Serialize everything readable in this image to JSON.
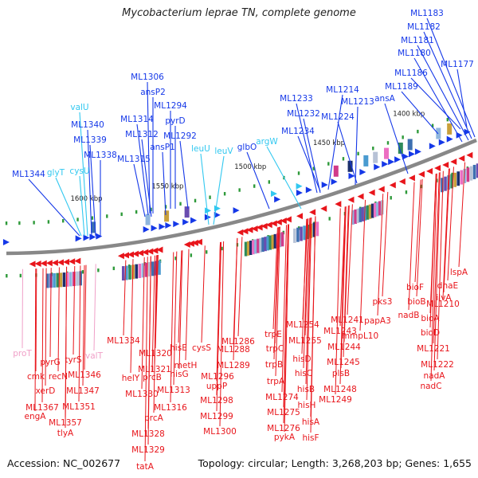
{
  "title": "Mycobacterium leprae TN, complete genome",
  "footer": {
    "accession": "Accession: NC_002677",
    "topology": "Topology: circular; Length: 3,268,203 bp; Genes: 1,655"
  },
  "colors": {
    "forward": "#1538e8",
    "reverse": "#e8151b",
    "rna": "#32c8f0",
    "pseudo": "#f0a0c8",
    "backbone": "#888888"
  },
  "ruler_ticks": [
    "1400 kbp",
    "1450 kbp",
    "1500 kbp",
    "1550 kbp",
    "1600 kbp"
  ],
  "top_labels": [
    {
      "text": "ML1183",
      "kind": "forward"
    },
    {
      "text": "ML1182",
      "kind": "forward"
    },
    {
      "text": "ML1181",
      "kind": "forward"
    },
    {
      "text": "ML1180",
      "kind": "forward"
    },
    {
      "text": "ML1177",
      "kind": "forward"
    },
    {
      "text": "ML1186",
      "kind": "forward"
    },
    {
      "text": "ML1189",
      "kind": "forward"
    },
    {
      "text": "ML1306",
      "kind": "forward"
    },
    {
      "text": "ansP2",
      "kind": "forward"
    },
    {
      "text": "ML1294",
      "kind": "forward"
    },
    {
      "text": "pyrD",
      "kind": "forward"
    },
    {
      "text": "ML1314",
      "kind": "forward"
    },
    {
      "text": "ML1312",
      "kind": "forward"
    },
    {
      "text": "ML1292",
      "kind": "forward"
    },
    {
      "text": "ansP1",
      "kind": "forward"
    },
    {
      "text": "ML1315",
      "kind": "forward"
    },
    {
      "text": "valU",
      "kind": "rna"
    },
    {
      "text": "ML1340",
      "kind": "forward"
    },
    {
      "text": "ML1339",
      "kind": "forward"
    },
    {
      "text": "cysU",
      "kind": "rna"
    },
    {
      "text": "ML1338",
      "kind": "forward"
    },
    {
      "text": "glyT",
      "kind": "rna"
    },
    {
      "text": "ML1344",
      "kind": "forward"
    },
    {
      "text": "ML1214",
      "kind": "forward"
    },
    {
      "text": "ML1213",
      "kind": "forward"
    },
    {
      "text": "ansA",
      "kind": "forward"
    },
    {
      "text": "ML1233",
      "kind": "forward"
    },
    {
      "text": "ML1232",
      "kind": "forward"
    },
    {
      "text": "ML1224",
      "kind": "forward"
    },
    {
      "text": "ML1234",
      "kind": "forward"
    },
    {
      "text": "argW",
      "kind": "rna"
    },
    {
      "text": "glbO",
      "kind": "forward"
    },
    {
      "text": "leuV",
      "kind": "rna"
    },
    {
      "text": "leuU",
      "kind": "rna"
    }
  ],
  "bottom_labels": [
    {
      "text": "lspA",
      "kind": "reverse"
    },
    {
      "text": "dnaE",
      "kind": "reverse"
    },
    {
      "text": "ilvA",
      "kind": "reverse"
    },
    {
      "text": "bioF",
      "kind": "reverse"
    },
    {
      "text": "bioB",
      "kind": "reverse"
    },
    {
      "text": "ML1210",
      "kind": "reverse"
    },
    {
      "text": "nadB",
      "kind": "reverse"
    },
    {
      "text": "bioA",
      "kind": "reverse"
    },
    {
      "text": "bioD",
      "kind": "reverse"
    },
    {
      "text": "pks3",
      "kind": "reverse"
    },
    {
      "text": "papA3",
      "kind": "reverse"
    },
    {
      "text": "mmpL10",
      "kind": "reverse"
    },
    {
      "text": "ML1221",
      "kind": "reverse"
    },
    {
      "text": "ML1222",
      "kind": "reverse"
    },
    {
      "text": "nadA",
      "kind": "reverse"
    },
    {
      "text": "nadC",
      "kind": "reverse"
    },
    {
      "text": "ML1241",
      "kind": "reverse"
    },
    {
      "text": "ML1243",
      "kind": "reverse"
    },
    {
      "text": "ML1244",
      "kind": "reverse"
    },
    {
      "text": "ML1245",
      "kind": "reverse"
    },
    {
      "text": "plsB",
      "kind": "reverse"
    },
    {
      "text": "ML1248",
      "kind": "reverse"
    },
    {
      "text": "ML1249",
      "kind": "reverse"
    },
    {
      "text": "ML1254",
      "kind": "reverse"
    },
    {
      "text": "ML1255",
      "kind": "reverse"
    },
    {
      "text": "hisD",
      "kind": "reverse"
    },
    {
      "text": "hisC",
      "kind": "reverse"
    },
    {
      "text": "hisB",
      "kind": "reverse"
    },
    {
      "text": "hisH",
      "kind": "reverse"
    },
    {
      "text": "hisA",
      "kind": "reverse"
    },
    {
      "text": "hisF",
      "kind": "reverse"
    },
    {
      "text": "trpE",
      "kind": "reverse"
    },
    {
      "text": "trpC",
      "kind": "reverse"
    },
    {
      "text": "trpB",
      "kind": "reverse"
    },
    {
      "text": "trpA",
      "kind": "reverse"
    },
    {
      "text": "ML1274",
      "kind": "reverse"
    },
    {
      "text": "ML1275",
      "kind": "reverse"
    },
    {
      "text": "ML1276",
      "kind": "reverse"
    },
    {
      "text": "pykA",
      "kind": "reverse"
    },
    {
      "text": "ML1286",
      "kind": "reverse"
    },
    {
      "text": "ML1288",
      "kind": "reverse"
    },
    {
      "text": "ML1289",
      "kind": "reverse"
    },
    {
      "text": "cysS",
      "kind": "reverse"
    },
    {
      "text": "ML1296",
      "kind": "reverse"
    },
    {
      "text": "uppP",
      "kind": "reverse"
    },
    {
      "text": "ML1298",
      "kind": "reverse"
    },
    {
      "text": "ML1299",
      "kind": "reverse"
    },
    {
      "text": "ML1300",
      "kind": "reverse"
    },
    {
      "text": "hisE",
      "kind": "reverse"
    },
    {
      "text": "metH",
      "kind": "reverse"
    },
    {
      "text": "hisG",
      "kind": "reverse"
    },
    {
      "text": "ML1313",
      "kind": "reverse"
    },
    {
      "text": "ML1316",
      "kind": "reverse"
    },
    {
      "text": "ML1334",
      "kind": "reverse"
    },
    {
      "text": "ML1320",
      "kind": "reverse"
    },
    {
      "text": "ML1321",
      "kind": "reverse"
    },
    {
      "text": "prcB",
      "kind": "reverse"
    },
    {
      "text": "helY",
      "kind": "reverse"
    },
    {
      "text": "ML1330",
      "kind": "reverse"
    },
    {
      "text": "prcA",
      "kind": "reverse"
    },
    {
      "text": "ML1328",
      "kind": "reverse"
    },
    {
      "text": "ML1329",
      "kind": "reverse"
    },
    {
      "text": "tatA",
      "kind": "reverse"
    },
    {
      "text": "proT",
      "kind": "pseudo"
    },
    {
      "text": "valT",
      "kind": "pseudo"
    },
    {
      "text": "pyrG",
      "kind": "reverse"
    },
    {
      "text": "tyrS",
      "kind": "reverse"
    },
    {
      "text": "cmk",
      "kind": "reverse"
    },
    {
      "text": "recN",
      "kind": "reverse"
    },
    {
      "text": "ML1346",
      "kind": "reverse"
    },
    {
      "text": "xerD",
      "kind": "reverse"
    },
    {
      "text": "ML1347",
      "kind": "reverse"
    },
    {
      "text": "ML1367",
      "kind": "reverse"
    },
    {
      "text": "engA",
      "kind": "reverse"
    },
    {
      "text": "ML1351",
      "kind": "reverse"
    },
    {
      "text": "ML1357",
      "kind": "reverse"
    },
    {
      "text": "tlyA",
      "kind": "reverse"
    }
  ]
}
